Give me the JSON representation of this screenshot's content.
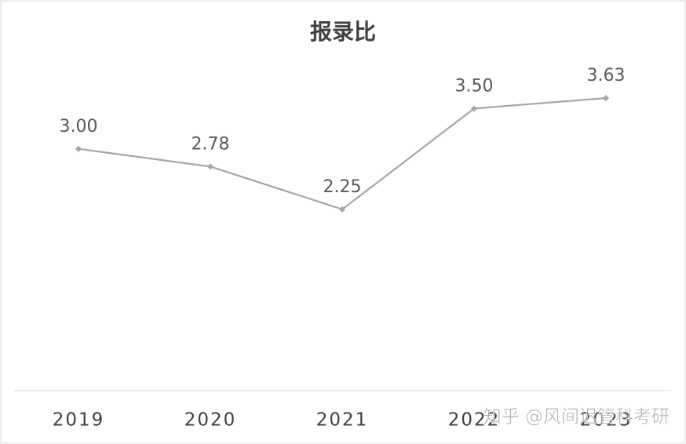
{
  "chart_data": {
    "type": "line",
    "title": "报录比",
    "categories": [
      "2019",
      "2020",
      "2021",
      "2022",
      "2023"
    ],
    "series": [
      {
        "name": "报录比",
        "color": "#a6a6a6",
        "values": [
          3.0,
          2.78,
          2.25,
          3.5,
          3.63
        ],
        "value_labels": [
          "3.00",
          "2.78",
          "2.25",
          "3.50",
          "3.63"
        ]
      }
    ],
    "ylim": [
      0,
      4
    ],
    "watermark": "知乎 @风间迟管科考研"
  }
}
